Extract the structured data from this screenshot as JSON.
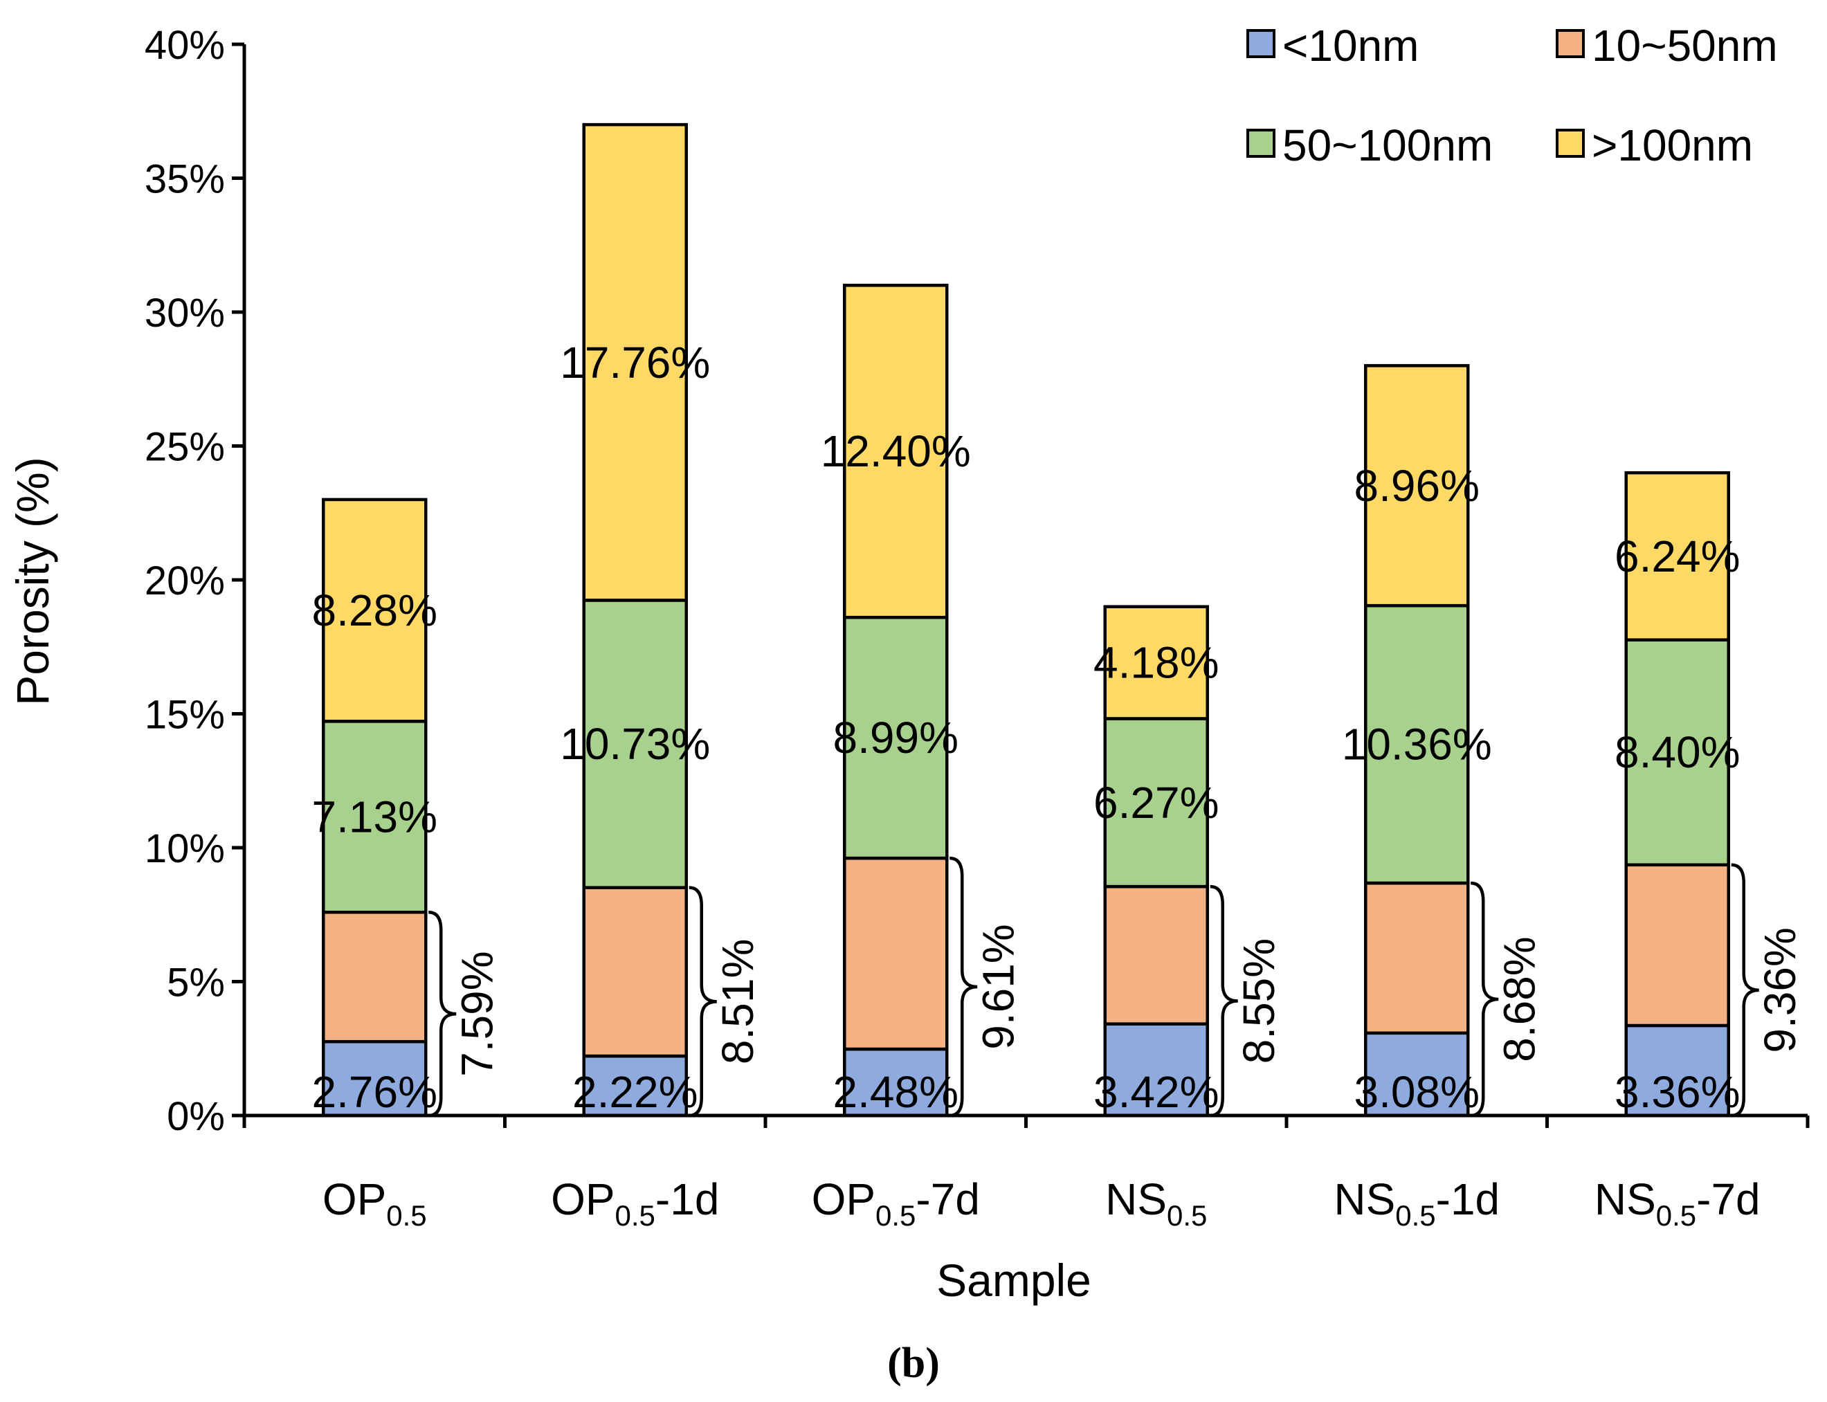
{
  "chart_data": {
    "type": "bar",
    "stacked": true,
    "title": "",
    "xlabel": "Sample",
    "ylabel": "Porosity (%)",
    "ylim": [
      0,
      40
    ],
    "yticks": [
      "0%",
      "5%",
      "10%",
      "15%",
      "20%",
      "25%",
      "30%",
      "35%",
      "40%"
    ],
    "panel_label": "(b)",
    "categories": [
      {
        "base": "OP",
        "sub": "0.5",
        "suffix": ""
      },
      {
        "base": "OP",
        "sub": "0.5",
        "suffix": "-1d"
      },
      {
        "base": "OP",
        "sub": "0.5",
        "suffix": "-7d"
      },
      {
        "base": "NS",
        "sub": "0.5",
        "suffix": ""
      },
      {
        "base": "NS",
        "sub": "0.5",
        "suffix": "-1d"
      },
      {
        "base": "NS",
        "sub": "0.5",
        "suffix": "-7d"
      }
    ],
    "series": [
      {
        "name": "<10nm",
        "color": "#8faadc",
        "values": [
          2.76,
          2.22,
          2.48,
          3.42,
          3.08,
          3.36
        ],
        "labels": [
          "2.76%",
          "2.22%",
          "2.48%",
          "3.42%",
          "3.08%",
          "3.36%"
        ]
      },
      {
        "name": "10~50nm",
        "color": "#f4b183",
        "values": [
          4.83,
          6.29,
          7.13,
          5.13,
          5.6,
          6.0
        ],
        "labels": [
          "",
          "",
          "",
          "",
          "",
          ""
        ]
      },
      {
        "name": "50~100nm",
        "color": "#a9d18e",
        "values": [
          7.13,
          10.73,
          8.99,
          6.27,
          10.36,
          8.4
        ],
        "labels": [
          "7.13%",
          "10.73%",
          "8.99%",
          "6.27%",
          "10.36%",
          "8.40%"
        ]
      },
      {
        "name": ">100nm",
        "color": "#ffd966",
        "values": [
          8.28,
          17.76,
          12.4,
          4.18,
          8.96,
          6.24
        ],
        "labels": [
          "8.28%",
          "17.76%",
          "12.40%",
          "4.18%",
          "8.96%",
          "6.24%"
        ]
      }
    ],
    "bracket_totals": [
      7.59,
      8.51,
      9.61,
      8.55,
      8.68,
      9.36
    ],
    "bracket_labels": [
      "7.59%",
      "8.51%",
      "9.61%",
      "8.55%",
      "8.68%",
      "9.36%"
    ],
    "legend": [
      {
        "name": "<10nm",
        "color": "#8faadc"
      },
      {
        "name": "10~50nm",
        "color": "#f4b183"
      },
      {
        "name": "50~100nm",
        "color": "#a9d18e"
      },
      {
        "name": ">100nm",
        "color": "#ffd966"
      }
    ],
    "legend_position": "top-right"
  }
}
